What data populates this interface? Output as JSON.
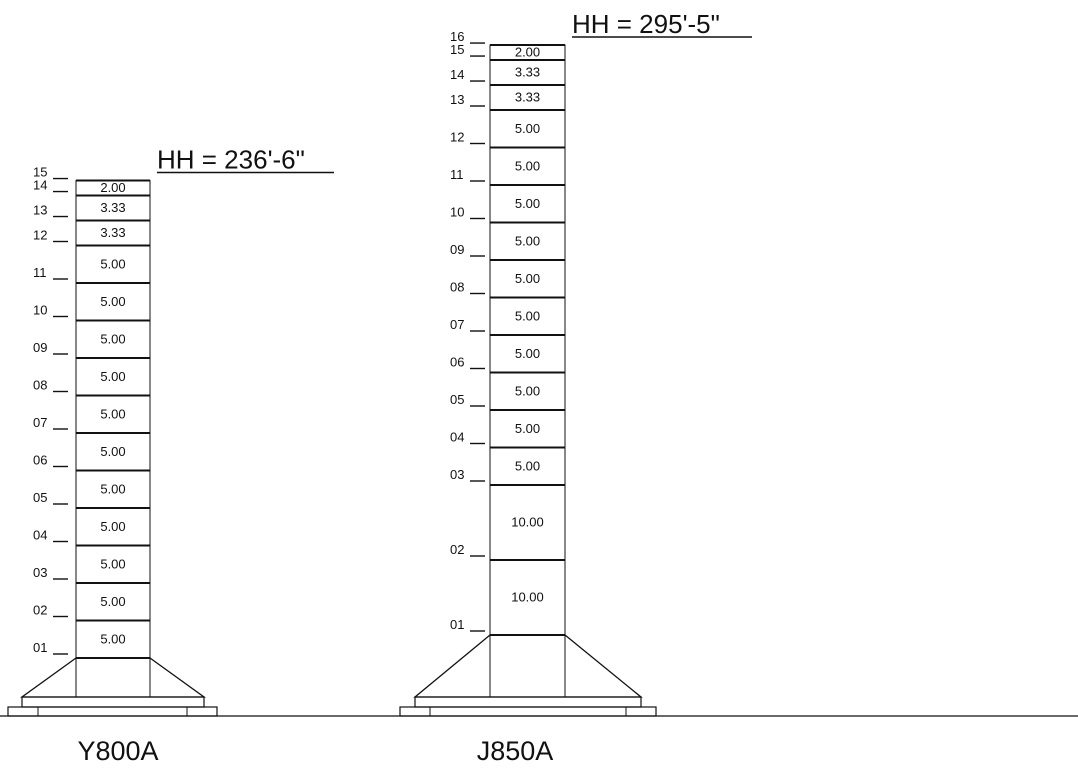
{
  "towers": [
    {
      "name": "Y800A",
      "hub_height": "HH = 236'-6\"",
      "sections": [
        {
          "label": "01",
          "length": "5.00"
        },
        {
          "label": "02",
          "length": "5.00"
        },
        {
          "label": "03",
          "length": "5.00"
        },
        {
          "label": "04",
          "length": "5.00"
        },
        {
          "label": "05",
          "length": "5.00"
        },
        {
          "label": "06",
          "length": "5.00"
        },
        {
          "label": "07",
          "length": "5.00"
        },
        {
          "label": "08",
          "length": "5.00"
        },
        {
          "label": "09",
          "length": "5.00"
        },
        {
          "label": "10",
          "length": "5.00"
        },
        {
          "label": "11",
          "length": "5.00"
        },
        {
          "label": "12",
          "length": "3.33"
        },
        {
          "label": "13",
          "length": "3.33"
        },
        {
          "label": "14",
          "length": "2.00"
        }
      ],
      "top_label": "15"
    },
    {
      "name": "J850A",
      "hub_height": "HH = 295'-5\"",
      "sections": [
        {
          "label": "01",
          "length": "10.00"
        },
        {
          "label": "02",
          "length": "10.00"
        },
        {
          "label": "03",
          "length": "5.00"
        },
        {
          "label": "04",
          "length": "5.00"
        },
        {
          "label": "05",
          "length": "5.00"
        },
        {
          "label": "06",
          "length": "5.00"
        },
        {
          "label": "07",
          "length": "5.00"
        },
        {
          "label": "08",
          "length": "5.00"
        },
        {
          "label": "09",
          "length": "5.00"
        },
        {
          "label": "10",
          "length": "5.00"
        },
        {
          "label": "11",
          "length": "5.00"
        },
        {
          "label": "12",
          "length": "5.00"
        },
        {
          "label": "13",
          "length": "3.33"
        },
        {
          "label": "14",
          "length": "3.33"
        },
        {
          "label": "15",
          "length": "2.00"
        }
      ],
      "top_label": "16"
    }
  ]
}
